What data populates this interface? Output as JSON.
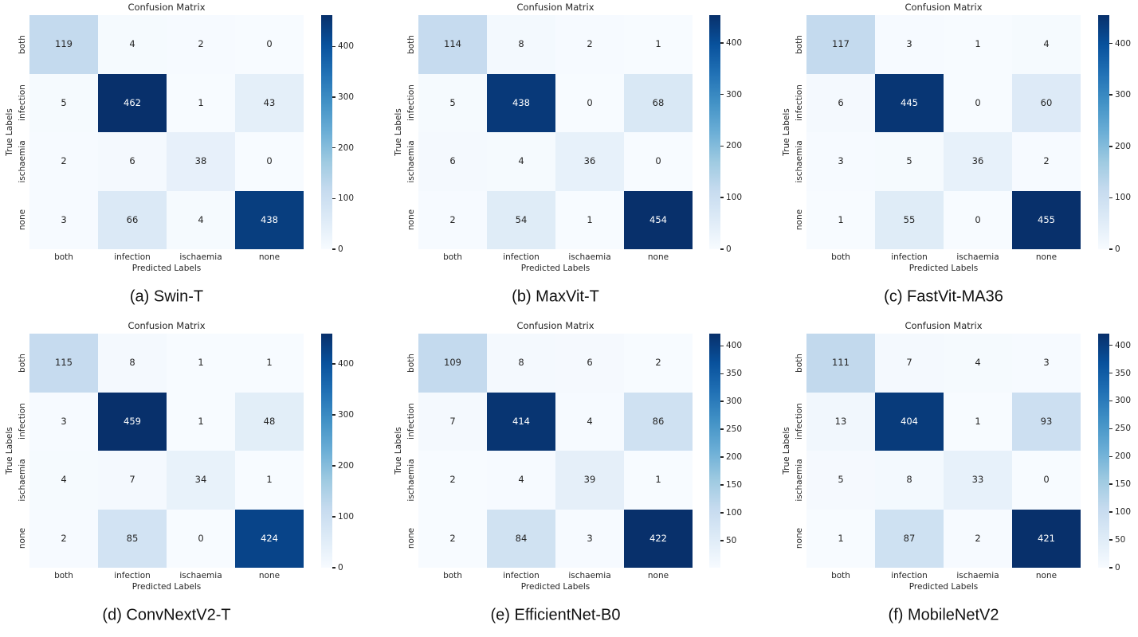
{
  "page": {
    "background": "#ffffff",
    "description": "Six confusion matrix heatmaps comparing classification models"
  },
  "colors": {
    "colormap_name": "Blues",
    "colormap_anchors": [
      "#f7fbff",
      "#deebf7",
      "#c6dbef",
      "#9ecae1",
      "#6baed6",
      "#4292c6",
      "#2171b5",
      "#08519c",
      "#08306b"
    ],
    "annotation_dark": "#262626",
    "annotation_light": "#ffffff",
    "axis_text": "#262626",
    "caption_text": "#111111"
  },
  "chart_data": [
    {
      "type": "heatmap",
      "caption": "(a) Swin-T",
      "title": "Confusion Matrix",
      "xlabel": "Predicted Labels",
      "ylabel": "True Labels",
      "x_categories": [
        "both",
        "infection",
        "ischaemia",
        "none"
      ],
      "y_categories": [
        "both",
        "infection",
        "ischaemia",
        "none"
      ],
      "values": [
        [
          119,
          4,
          2,
          0
        ],
        [
          5,
          462,
          1,
          43
        ],
        [
          2,
          6,
          38,
          0
        ],
        [
          3,
          66,
          4,
          438
        ]
      ],
      "vmin": 0,
      "vmax": 462,
      "colorbar_ticks": [
        0,
        100,
        200,
        300,
        400
      ],
      "colormap": "Blues",
      "legend_position": "right-colorbar"
    },
    {
      "type": "heatmap",
      "caption": "(b) MaxVit-T",
      "title": "Confusion Matrix",
      "xlabel": "Predicted Labels",
      "ylabel": "True Labels",
      "x_categories": [
        "both",
        "infection",
        "ischaemia",
        "none"
      ],
      "y_categories": [
        "both",
        "infection",
        "ischaemia",
        "none"
      ],
      "values": [
        [
          114,
          8,
          2,
          1
        ],
        [
          5,
          438,
          0,
          68
        ],
        [
          6,
          4,
          36,
          0
        ],
        [
          2,
          54,
          1,
          454
        ]
      ],
      "vmin": 0,
      "vmax": 454,
      "colorbar_ticks": [
        0,
        100,
        200,
        300,
        400
      ],
      "colormap": "Blues",
      "legend_position": "right-colorbar"
    },
    {
      "type": "heatmap",
      "caption": "(c) FastVit-MA36",
      "title": "Confusion Matrix",
      "xlabel": "Predicted Labels",
      "ylabel": "True Labels",
      "x_categories": [
        "both",
        "infection",
        "ischaemia",
        "none"
      ],
      "y_categories": [
        "both",
        "infection",
        "ischaemia",
        "none"
      ],
      "values": [
        [
          117,
          3,
          1,
          4
        ],
        [
          6,
          445,
          0,
          60
        ],
        [
          3,
          5,
          36,
          2
        ],
        [
          1,
          55,
          0,
          455
        ]
      ],
      "vmin": 0,
      "vmax": 455,
      "colorbar_ticks": [
        0,
        100,
        200,
        300,
        400
      ],
      "colormap": "Blues",
      "legend_position": "right-colorbar"
    },
    {
      "type": "heatmap",
      "caption": "(d) ConvNextV2-T",
      "title": "Confusion Matrix",
      "xlabel": "Predicted Labels",
      "ylabel": "True Labels",
      "x_categories": [
        "both",
        "infection",
        "ischaemia",
        "none"
      ],
      "y_categories": [
        "both",
        "infection",
        "ischaemia",
        "none"
      ],
      "values": [
        [
          115,
          8,
          1,
          1
        ],
        [
          3,
          459,
          1,
          48
        ],
        [
          4,
          7,
          34,
          1
        ],
        [
          2,
          85,
          0,
          424
        ]
      ],
      "vmin": 0,
      "vmax": 459,
      "colorbar_ticks": [
        0,
        100,
        200,
        300,
        400
      ],
      "colormap": "Blues",
      "legend_position": "right-colorbar"
    },
    {
      "type": "heatmap",
      "caption": "(e) EfficientNet-B0",
      "title": "Confusion Matrix",
      "xlabel": "Predicted Labels",
      "ylabel": "True Labels",
      "x_categories": [
        "both",
        "infection",
        "ischaemia",
        "none"
      ],
      "y_categories": [
        "both",
        "infection",
        "ischaemia",
        "none"
      ],
      "values": [
        [
          109,
          8,
          6,
          2
        ],
        [
          7,
          414,
          4,
          86
        ],
        [
          2,
          4,
          39,
          1
        ],
        [
          2,
          84,
          3,
          422
        ]
      ],
      "vmin": 1,
      "vmax": 422,
      "colorbar_ticks": [
        50,
        100,
        150,
        200,
        250,
        300,
        350,
        400
      ],
      "colormap": "Blues",
      "legend_position": "right-colorbar"
    },
    {
      "type": "heatmap",
      "caption": "(f) MobileNetV2",
      "title": "Confusion Matrix",
      "xlabel": "Predicted Labels",
      "ylabel": "True Labels",
      "x_categories": [
        "both",
        "infection",
        "ischaemia",
        "none"
      ],
      "y_categories": [
        "both",
        "infection",
        "ischaemia",
        "none"
      ],
      "values": [
        [
          111,
          7,
          4,
          3
        ],
        [
          13,
          404,
          1,
          93
        ],
        [
          5,
          8,
          33,
          0
        ],
        [
          1,
          87,
          2,
          421
        ]
      ],
      "vmin": 0,
      "vmax": 421,
      "colorbar_ticks": [
        0,
        50,
        100,
        150,
        200,
        250,
        300,
        350,
        400
      ],
      "colormap": "Blues",
      "legend_position": "right-colorbar"
    }
  ]
}
